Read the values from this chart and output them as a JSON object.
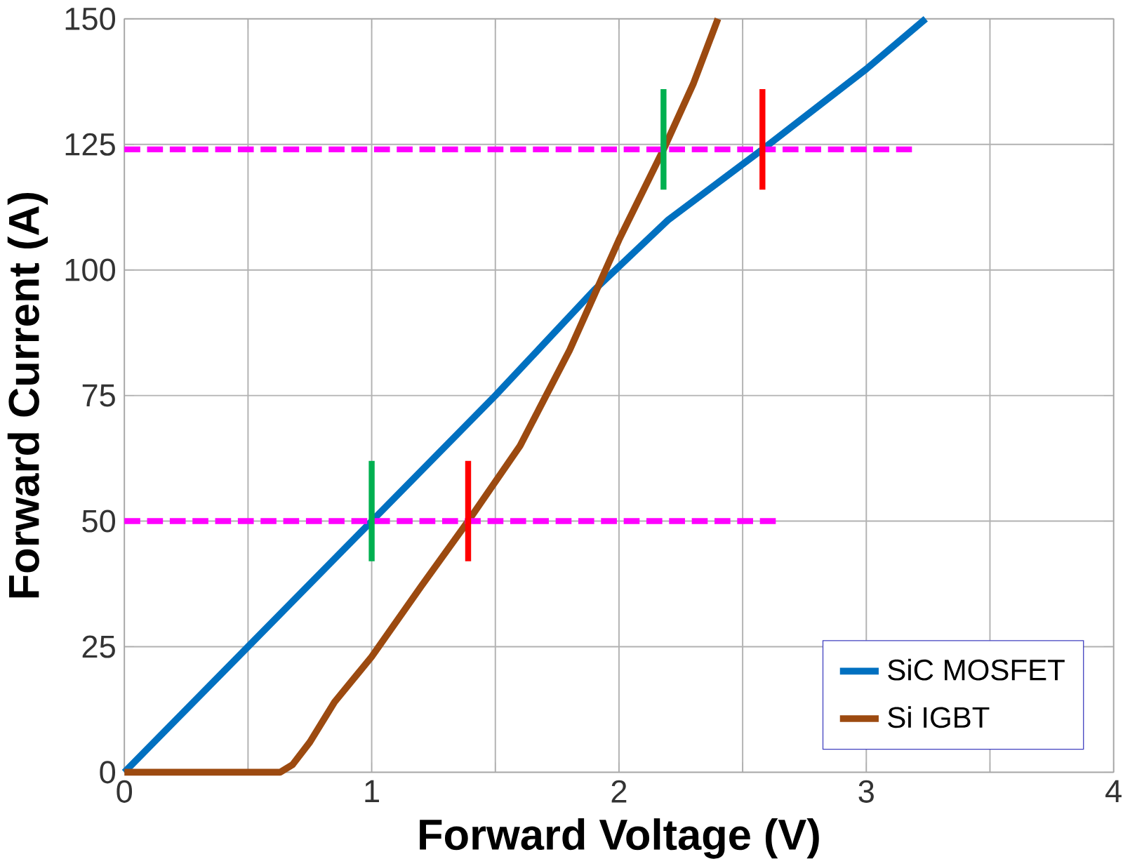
{
  "chart_data": {
    "type": "line",
    "xlabel": "Forward Voltage (V)",
    "ylabel": "Forward Current (A)",
    "xlim": [
      0,
      4
    ],
    "ylim": [
      0,
      150
    ],
    "xticks": [
      0,
      {
        "value": 0.5,
        "label": null
      },
      1,
      {
        "value": 1.5,
        "label": null
      },
      2,
      {
        "value": 2.5,
        "label": null
      },
      3,
      {
        "value": 3.5,
        "label": null
      },
      4
    ],
    "yticks": [
      0,
      25,
      50,
      75,
      100,
      125,
      150
    ],
    "grid": true,
    "legend": "bottom right",
    "marker": "none",
    "series": [
      {
        "name": "SiC MOSFET",
        "color": "#0070c0",
        "line_style": "solid",
        "x": [
          0,
          0.5,
          1,
          1.5,
          1.9,
          2.2,
          2.58,
          3,
          3.24
        ],
        "values": [
          0,
          25,
          50,
          75,
          96,
          110,
          124,
          140,
          150
        ]
      },
      {
        "name": "Si IGBT",
        "color": "#9c4a10",
        "line_style": "solid",
        "x": [
          0,
          0.63,
          0.68,
          0.75,
          0.85,
          1,
          1.2,
          1.39,
          1.6,
          1.8,
          1.9,
          2,
          2.18,
          2.3,
          2.4
        ],
        "values": [
          0,
          0,
          1.5,
          6,
          14,
          23,
          37,
          50,
          65,
          84,
          95,
          106,
          124,
          137,
          150
        ]
      },
      {
        "color": "#ff00ff",
        "line_style": "dashed",
        "x": [
          0,
          2.64
        ],
        "values": [
          50,
          50
        ]
      },
      {
        "color": "#ff00ff",
        "line_style": "dashed",
        "x": [
          0,
          3.21
        ],
        "values": [
          124,
          124
        ]
      },
      {
        "color": "#00b050",
        "line_style": "solid",
        "x": [
          1.0,
          1.0
        ],
        "values": [
          42,
          62
        ]
      },
      {
        "color": "#ff0000",
        "line_style": "solid",
        "x": [
          1.39,
          1.39
        ],
        "values": [
          42,
          62
        ]
      },
      {
        "color": "#00b050",
        "line_style": "solid",
        "x": [
          2.18,
          2.18
        ],
        "values": [
          116,
          136
        ]
      },
      {
        "color": "#ff0000",
        "line_style": "solid",
        "x": [
          2.58,
          2.58
        ],
        "values": [
          116,
          136
        ]
      }
    ]
  }
}
